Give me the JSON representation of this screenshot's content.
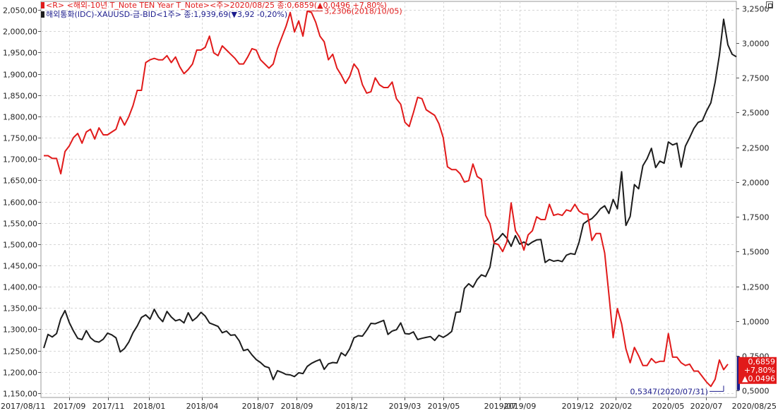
{
  "header": {
    "legend1": "<R> <해외-10년 T_Note TEN Year T_Note><주>2020/08/25 종:0,6859(▲0,0496 +7,80%)",
    "legend2": "해외통화(IDC)-XAUUSD-금-BID<1주> 종:1,939,69(▼3,92 -0,20%)",
    "legend1_color": "#e11a1a",
    "legend2_color": "#1b1b8c"
  },
  "chart_data": {
    "type": "line",
    "x_labels": [
      "2017/08/11",
      "2017/09",
      "2017/11",
      "2018/01",
      "2018/04",
      "2018/07",
      "2018/09",
      "2018/12",
      "2019/03",
      "2019/05",
      "2019/07",
      "2019/09",
      "2019/12",
      "2020/02",
      "2020/05",
      "2020/07",
      "2020/08/25"
    ],
    "left_axis": {
      "ticks": [
        "2,050,00",
        "2,000,00",
        "1,950,00",
        "1,900,00",
        "1,850,00",
        "1,800,00",
        "1,750,00",
        "1,700,00",
        "1,650,00",
        "1,600,00",
        "1,550,00",
        "1,500,00",
        "1,450,00",
        "1,400,00",
        "1,350,00",
        "1,300,00",
        "1,250,00",
        "1,200,00",
        "1,150,00"
      ],
      "ylim": [
        1140,
        2070
      ]
    },
    "right_axis": {
      "ticks": [
        "3,2500",
        "3,0000",
        "2,7500",
        "2,5000",
        "2,2500",
        "2,0000",
        "1,7500",
        "1,5000",
        "1,2500",
        "1,0000",
        "0,7500",
        "0,5000"
      ],
      "ylim": [
        0.45,
        3.3
      ]
    },
    "grid": true,
    "series": [
      {
        "name": "해외-10년 T_Note TEN Year T_Note",
        "axis": "right",
        "color": "#e11a1a",
        "values": [
          2.19,
          2.19,
          2.17,
          2.17,
          2.06,
          2.22,
          2.26,
          2.32,
          2.35,
          2.28,
          2.36,
          2.38,
          2.31,
          2.39,
          2.34,
          2.34,
          2.36,
          2.38,
          2.47,
          2.41,
          2.47,
          2.55,
          2.66,
          2.66,
          2.86,
          2.88,
          2.89,
          2.88,
          2.88,
          2.91,
          2.86,
          2.9,
          2.83,
          2.78,
          2.81,
          2.85,
          2.95,
          2.95,
          2.97,
          3.05,
          2.93,
          2.91,
          2.98,
          2.95,
          2.92,
          2.89,
          2.85,
          2.85,
          2.9,
          2.96,
          2.95,
          2.88,
          2.85,
          2.82,
          2.85,
          2.96,
          3.04,
          3.12,
          3.22,
          3.08,
          3.16,
          3.05,
          3.23,
          3.22,
          3.15,
          3.05,
          3.01,
          2.88,
          2.92,
          2.82,
          2.77,
          2.71,
          2.76,
          2.85,
          2.81,
          2.7,
          2.64,
          2.65,
          2.75,
          2.7,
          2.68,
          2.68,
          2.72,
          2.6,
          2.56,
          2.43,
          2.4,
          2.5,
          2.61,
          2.6,
          2.52,
          2.5,
          2.48,
          2.42,
          2.32,
          2.11,
          2.09,
          2.09,
          2.06,
          2.0,
          2.01,
          2.13,
          2.04,
          2.02,
          1.76,
          1.7,
          1.56,
          1.55,
          1.5,
          1.57,
          1.85,
          1.65,
          1.6,
          1.51,
          1.62,
          1.65,
          1.75,
          1.73,
          1.73,
          1.84,
          1.76,
          1.77,
          1.76,
          1.8,
          1.79,
          1.84,
          1.79,
          1.77,
          1.77,
          1.58,
          1.63,
          1.63,
          1.49,
          1.19,
          0.88,
          1.09,
          0.98,
          0.8,
          0.7,
          0.81,
          0.75,
          0.68,
          0.68,
          0.73,
          0.7,
          0.71,
          0.71,
          0.91,
          0.74,
          0.74,
          0.7,
          0.68,
          0.69,
          0.64,
          0.64,
          0.6,
          0.56,
          0.53,
          0.58,
          0.72,
          0.65,
          0.69
        ]
      },
      {
        "name": "해외통화(IDC)-XAUUSD-금-BID",
        "axis": "left",
        "color": "#1c1c1c",
        "values": [
          1256,
          1288,
          1282,
          1290,
          1325,
          1344,
          1316,
          1296,
          1279,
          1276,
          1297,
          1280,
          1272,
          1270,
          1277,
          1291,
          1287,
          1280,
          1247,
          1255,
          1270,
          1292,
          1308,
          1328,
          1334,
          1324,
          1347,
          1329,
          1318,
          1342,
          1329,
          1320,
          1323,
          1315,
          1339,
          1320,
          1328,
          1340,
          1331,
          1315,
          1311,
          1307,
          1292,
          1296,
          1286,
          1287,
          1273,
          1250,
          1253,
          1240,
          1229,
          1222,
          1213,
          1210,
          1182,
          1203,
          1199,
          1194,
          1193,
          1189,
          1198,
          1196,
          1213,
          1220,
          1225,
          1229,
          1206,
          1219,
          1222,
          1221,
          1245,
          1238,
          1254,
          1280,
          1285,
          1284,
          1298,
          1314,
          1313,
          1317,
          1321,
          1288,
          1296,
          1299,
          1315,
          1290,
          1289,
          1294,
          1276,
          1279,
          1281,
          1283,
          1274,
          1286,
          1281,
          1287,
          1295,
          1340,
          1341,
          1396,
          1407,
          1399,
          1417,
          1428,
          1424,
          1446,
          1505,
          1513,
          1525,
          1514,
          1495,
          1520,
          1500,
          1505,
          1498,
          1505,
          1510,
          1511,
          1457,
          1464,
          1460,
          1462,
          1459,
          1474,
          1478,
          1476,
          1505,
          1548,
          1555,
          1560,
          1570,
          1583,
          1590,
          1572,
          1605,
          1583,
          1670,
          1544,
          1565,
          1640,
          1630,
          1684,
          1701,
          1725,
          1680,
          1695,
          1690,
          1740,
          1733,
          1737,
          1681,
          1730,
          1750,
          1772,
          1786,
          1790,
          1813,
          1832,
          1880,
          1944,
          2028,
          1968,
          1946,
          1940
        ]
      }
    ],
    "annotations": [
      {
        "text": "3,2306(2018/10/05)",
        "color": "#e11a1a",
        "at_index": 62,
        "value": 3.2306
      },
      {
        "text": "0,5347(2020/07/31)",
        "color": "#1b1b8c",
        "at_index": 160,
        "value": 0.5347
      }
    ],
    "last_value_box": {
      "lines": [
        "0,6859",
        "+7,80%",
        "▲0,0496"
      ],
      "color": "#e11a1a"
    }
  }
}
